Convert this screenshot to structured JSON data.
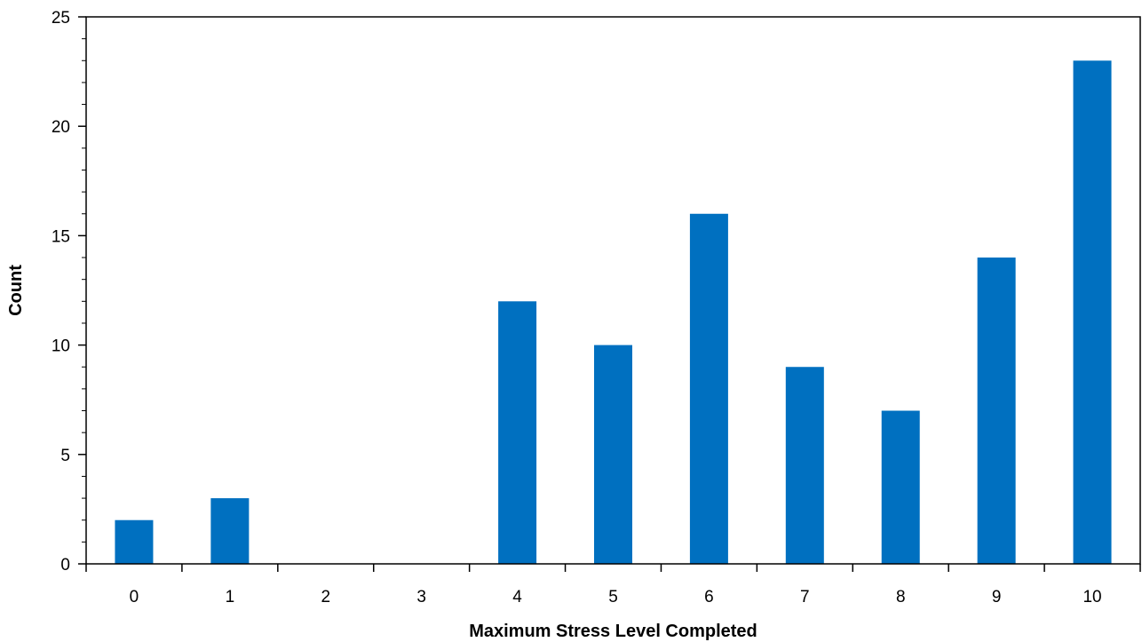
{
  "chart_data": {
    "type": "bar",
    "title": "",
    "xlabel": "Maximum Stress Level Completed",
    "ylabel": "Count",
    "categories": [
      "0",
      "1",
      "2",
      "3",
      "4",
      "5",
      "6",
      "7",
      "8",
      "9",
      "10"
    ],
    "values": [
      2,
      3,
      0,
      0,
      12,
      10,
      16,
      9,
      7,
      14,
      23
    ],
    "ylim": [
      0,
      25
    ],
    "yticks": [
      0,
      5,
      10,
      15,
      20,
      25
    ],
    "y_minor_step": 1,
    "grid": false,
    "legend": "none",
    "bar_color": "#0070C0",
    "axis_color": "#000000"
  }
}
